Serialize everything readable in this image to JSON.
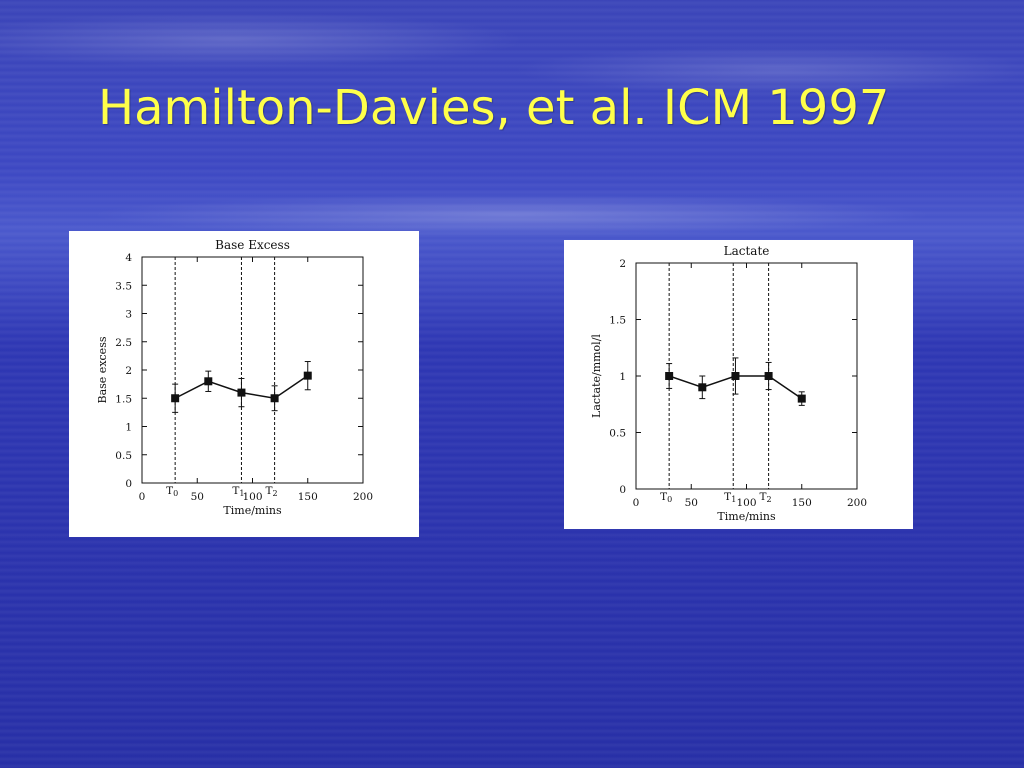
{
  "slide": {
    "title": "Hamilton-Davies, et al. ICM 1997"
  },
  "chart_data": [
    {
      "type": "line",
      "title": "Base Excess",
      "xlabel": "Time/mins",
      "ylabel": "Base excess",
      "xlim": [
        0,
        200
      ],
      "ylim": [
        0,
        4
      ],
      "xticks": [
        "0",
        "50",
        "100",
        "150",
        "200"
      ],
      "yticks": [
        "0",
        "0.5",
        "1",
        "1.5",
        "2",
        "2.5",
        "3",
        "3.5",
        "4"
      ],
      "markers": [
        {
          "label": "T",
          "sub": "0",
          "x": 30
        },
        {
          "label": "T",
          "sub": "1",
          "x": 90
        },
        {
          "label": "T",
          "sub": "2",
          "x": 120
        }
      ],
      "series": [
        {
          "x": [
            30,
            60,
            90,
            120,
            150
          ],
          "values": [
            1.5,
            1.8,
            1.6,
            1.5,
            1.9
          ],
          "error": [
            0.25,
            0.18,
            0.25,
            0.22,
            0.25
          ]
        }
      ]
    },
    {
      "type": "line",
      "title": "Lactate",
      "xlabel": "Time/mins",
      "ylabel": "Lactate/mmol/l",
      "xlim": [
        0,
        200
      ],
      "ylim": [
        0,
        2
      ],
      "xticks": [
        "0",
        "50",
        "100",
        "150",
        "200"
      ],
      "yticks": [
        "0",
        "0.5",
        "1",
        "1.5",
        "2"
      ],
      "markers": [
        {
          "label": "T",
          "sub": "0",
          "x": 30
        },
        {
          "label": "T",
          "sub": "1",
          "x": 88
        },
        {
          "label": "T",
          "sub": "2",
          "x": 120
        }
      ],
      "series": [
        {
          "x": [
            30,
            60,
            90,
            120,
            150
          ],
          "values": [
            1.0,
            0.9,
            1.0,
            1.0,
            0.8
          ],
          "error": [
            0.11,
            0.1,
            0.16,
            0.12,
            0.06
          ]
        }
      ]
    }
  ]
}
